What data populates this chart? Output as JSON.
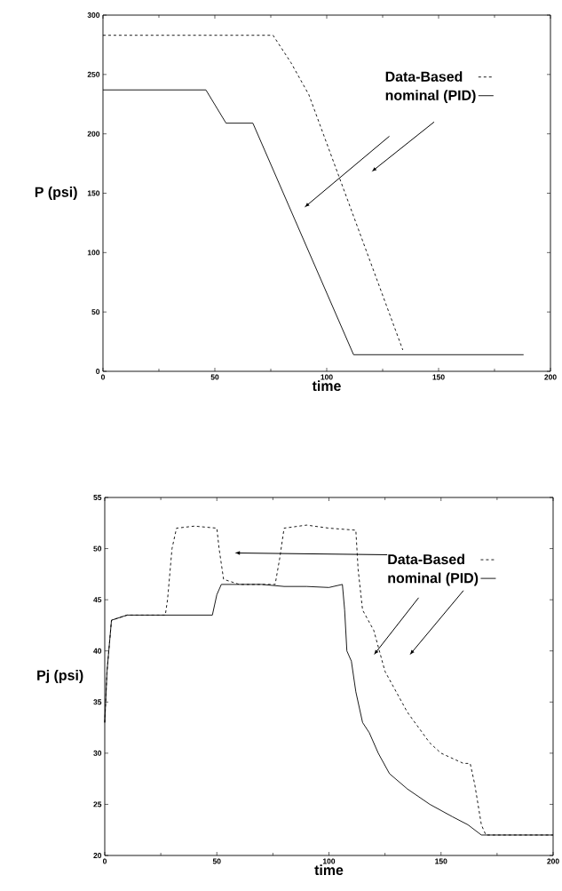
{
  "chart_data": [
    {
      "type": "line",
      "legend": "top right",
      "xlabel": "time",
      "ylabel": "P (psi)",
      "xlim": [
        0,
        200
      ],
      "ylim": [
        0,
        300
      ],
      "xticks": [
        0,
        50,
        100,
        150,
        200
      ],
      "yticks": [
        0,
        50,
        100,
        150,
        200,
        250,
        300
      ],
      "series": [
        {
          "name": "Data-Based",
          "color": "#000000",
          "line_style": "dashed",
          "x": [
            0,
            76,
            84,
            92,
            134
          ],
          "values": [
            283,
            283,
            260,
            233,
            18
          ]
        },
        {
          "name": "nominal (PID)",
          "color": "#000000",
          "line_style": "solid",
          "x": [
            0,
            46,
            55,
            67,
            112,
            188
          ],
          "values": [
            237,
            237,
            209,
            209,
            14,
            14
          ]
        }
      ]
    },
    {
      "type": "line",
      "legend": "top right",
      "xlabel": "time",
      "ylabel": "Pj (psi)",
      "xlim": [
        0,
        200
      ],
      "ylim": [
        20,
        55
      ],
      "xticks": [
        0,
        50,
        100,
        150,
        200
      ],
      "yticks": [
        20,
        25,
        30,
        35,
        40,
        45,
        50,
        55
      ],
      "series": [
        {
          "name": "Data-Based",
          "color": "#000000",
          "line_style": "dashed",
          "x": [
            0,
            1,
            3,
            10,
            20,
            27,
            28,
            30,
            32,
            40,
            50,
            51,
            53,
            60,
            70,
            76,
            78,
            80,
            90,
            100,
            112,
            113,
            115,
            120,
            125,
            130,
            135,
            140,
            145,
            150,
            155,
            160,
            163,
            165,
            168,
            170,
            180,
            190,
            200
          ],
          "values": [
            33,
            38,
            43,
            43.5,
            43.5,
            43.5,
            45,
            50,
            52,
            52.2,
            52,
            50,
            47,
            46.5,
            46.5,
            46.5,
            49,
            52,
            52.3,
            52,
            51.8,
            48,
            44,
            42,
            38,
            36,
            34,
            32.5,
            31,
            30,
            29.5,
            29,
            29,
            27,
            23,
            22,
            22,
            22,
            22
          ]
        },
        {
          "name": "nominal (PID)",
          "color": "#000000",
          "line_style": "solid",
          "x": [
            0,
            1,
            3,
            10,
            20,
            30,
            40,
            48,
            50,
            52,
            60,
            70,
            80,
            90,
            100,
            106,
            107,
            108,
            110,
            112,
            115,
            118,
            122,
            127,
            135,
            145,
            155,
            162,
            168,
            175,
            185,
            200
          ],
          "values": [
            33,
            38,
            43,
            43.5,
            43.5,
            43.5,
            43.5,
            43.5,
            45.5,
            46.5,
            46.5,
            46.5,
            46.3,
            46.3,
            46.2,
            46.5,
            44,
            40,
            39,
            36,
            33,
            32,
            30,
            28,
            26.5,
            25,
            23.8,
            23,
            22,
            22,
            22,
            22
          ]
        }
      ]
    }
  ]
}
